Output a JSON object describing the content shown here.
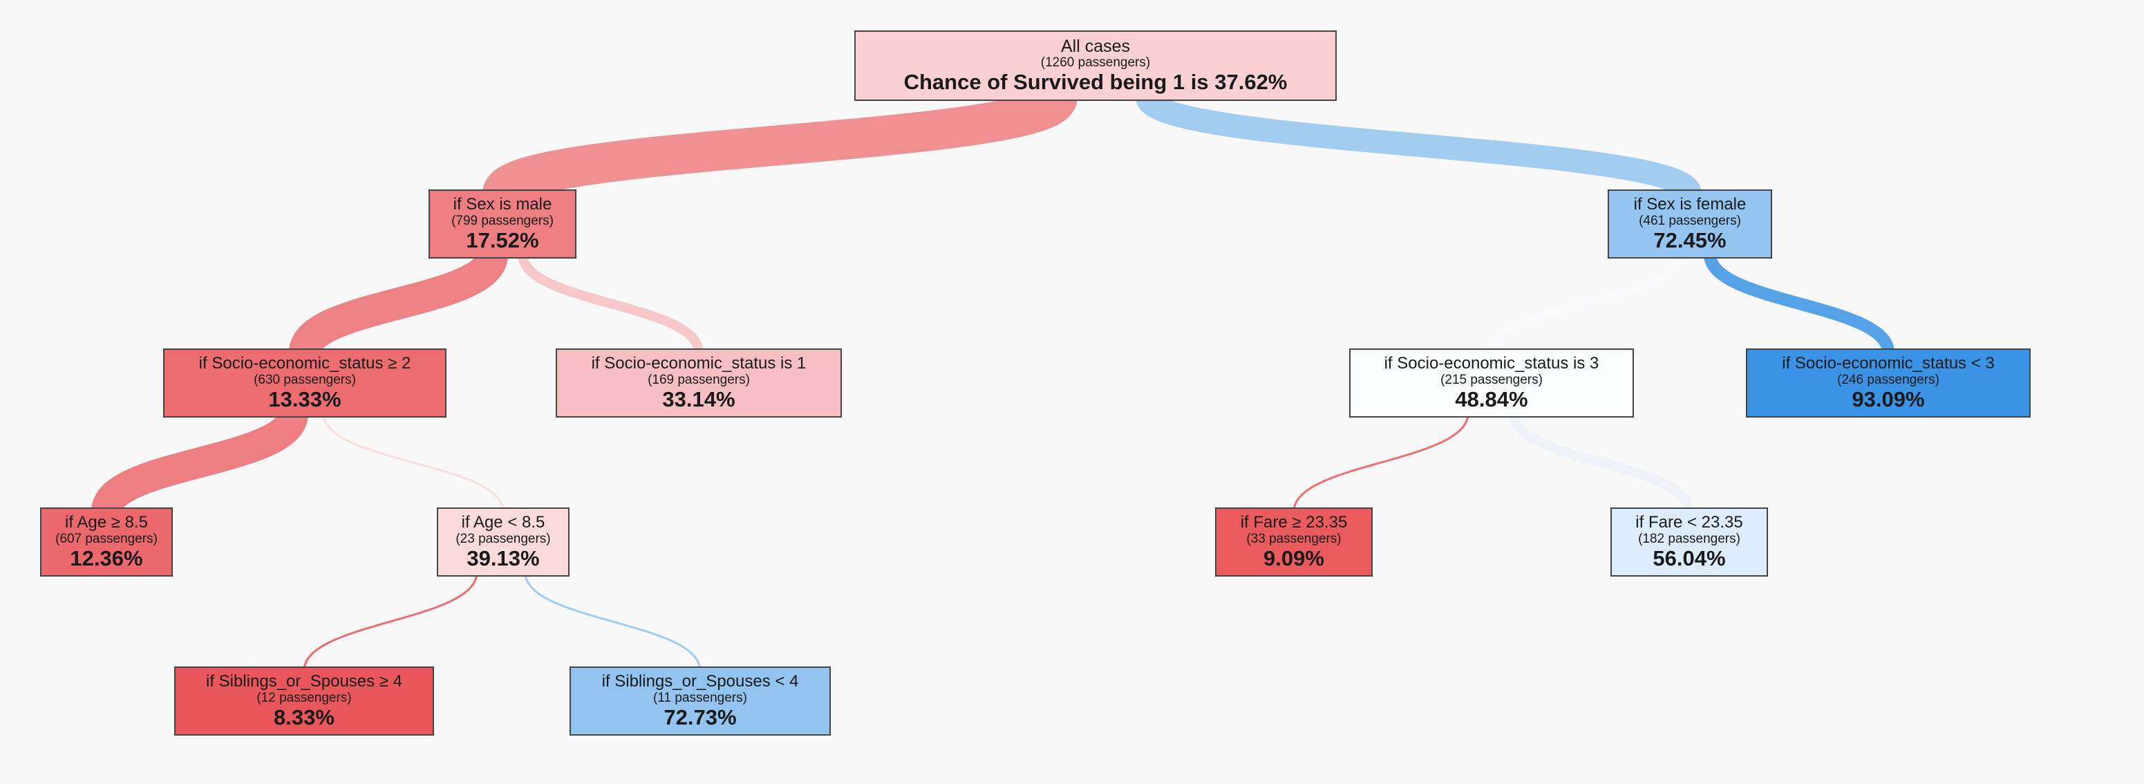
{
  "tree": {
    "colors": {
      "low": "#e8565a",
      "high": "#3a93e4",
      "mid": "#ffffff",
      "node_border": "#444444"
    },
    "nodes": [
      {
        "id": "root",
        "label": "All cases",
        "count": "(1260 passengers)",
        "pct": "Chance of Survived being 1 is 37.62%",
        "value": 37.62,
        "n": 1260,
        "parent": null
      },
      {
        "id": "male",
        "label": "if Sex is male",
        "count": "(799 passengers)",
        "pct": "17.52%",
        "value": 17.52,
        "n": 799,
        "parent": "root"
      },
      {
        "id": "female",
        "label": "if Sex is female",
        "count": "(461 passengers)",
        "pct": "72.45%",
        "value": 72.45,
        "n": 461,
        "parent": "root"
      },
      {
        "id": "male_ses_ge2",
        "label": "if Socio-economic_status ≥ 2",
        "count": "(630 passengers)",
        "pct": "13.33%",
        "value": 13.33,
        "n": 630,
        "parent": "male"
      },
      {
        "id": "male_ses1",
        "label": "if Socio-economic_status is 1",
        "count": "(169 passengers)",
        "pct": "33.14%",
        "value": 33.14,
        "n": 169,
        "parent": "male"
      },
      {
        "id": "female_ses3",
        "label": "if Socio-economic_status is 3",
        "count": "(215 passengers)",
        "pct": "48.84%",
        "value": 48.84,
        "n": 215,
        "parent": "female"
      },
      {
        "id": "female_ses_lt3",
        "label": "if Socio-economic_status < 3",
        "count": "(246 passengers)",
        "pct": "93.09%",
        "value": 93.09,
        "n": 246,
        "parent": "female"
      },
      {
        "id": "age_ge",
        "label": "if Age ≥ 8.5",
        "count": "(607 passengers)",
        "pct": "12.36%",
        "value": 12.36,
        "n": 607,
        "parent": "male_ses_ge2"
      },
      {
        "id": "age_lt",
        "label": "if Age < 8.5",
        "count": "(23 passengers)",
        "pct": "39.13%",
        "value": 39.13,
        "n": 23,
        "parent": "male_ses_ge2"
      },
      {
        "id": "fare_ge",
        "label": "if Fare ≥ 23.35",
        "count": "(33 passengers)",
        "pct": "9.09%",
        "value": 9.09,
        "n": 33,
        "parent": "female_ses3"
      },
      {
        "id": "fare_lt",
        "label": "if Fare < 23.35",
        "count": "(182 passengers)",
        "pct": "56.04%",
        "value": 56.04,
        "n": 182,
        "parent": "female_ses3"
      },
      {
        "id": "sib_ge",
        "label": "if Siblings_or_Spouses ≥ 4",
        "count": "(12 passengers)",
        "pct": "8.33%",
        "value": 8.33,
        "n": 12,
        "parent": "age_lt"
      },
      {
        "id": "sib_lt",
        "label": "if Siblings_or_Spouses < 4",
        "count": "(11 passengers)",
        "pct": "72.73%",
        "value": 72.73,
        "n": 11,
        "parent": "age_lt"
      }
    ]
  }
}
